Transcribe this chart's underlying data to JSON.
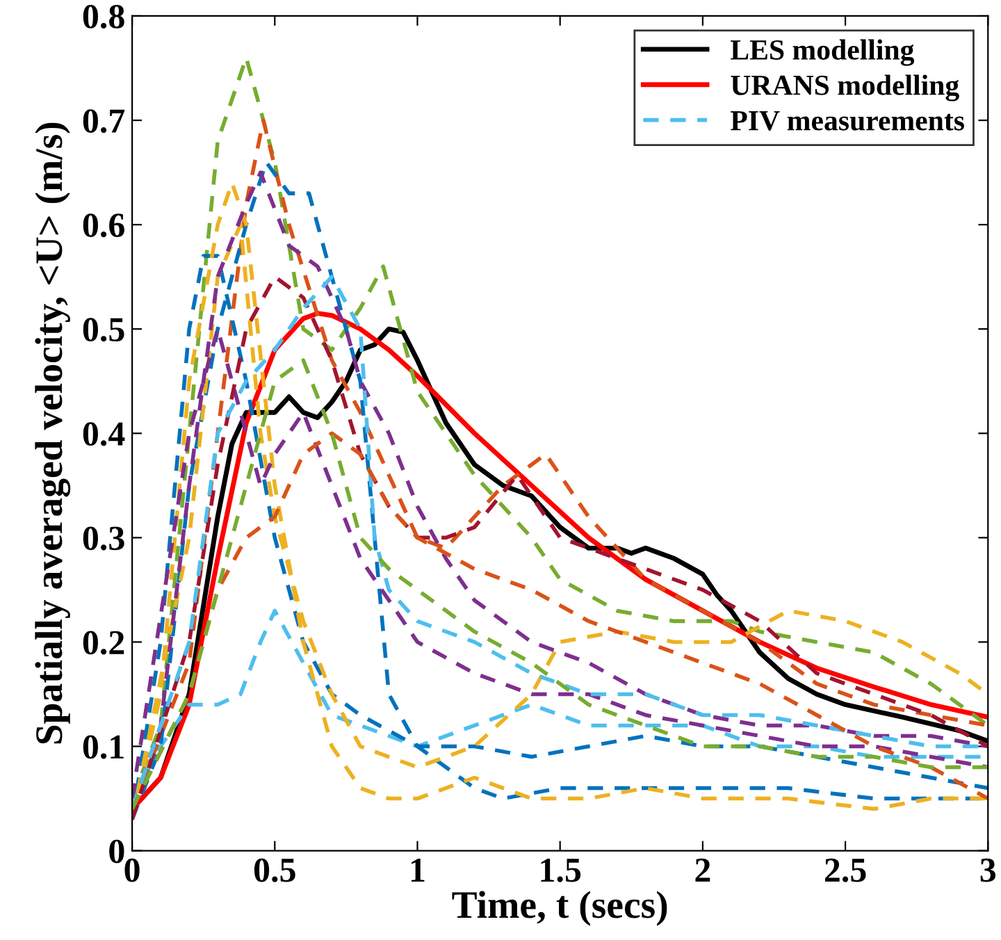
{
  "chart_data": {
    "type": "line",
    "xlabel": "Time, t (secs)",
    "ylabel": "Spatially averaged velocity, <U> (m/s)",
    "xlim": [
      0,
      3
    ],
    "ylim": [
      0,
      0.8
    ],
    "xticks": [
      0,
      0.5,
      1,
      1.5,
      2,
      2.5,
      3
    ],
    "yticks": [
      0,
      0.1,
      0.2,
      0.3,
      0.4,
      0.5,
      0.6,
      0.7,
      0.8
    ],
    "grid": false,
    "legend": "top right",
    "marker": "none",
    "series": [
      {
        "name": "LES modelling",
        "color": "#000000",
        "line_style": "solid",
        "x": [
          0,
          0.1,
          0.2,
          0.3,
          0.35,
          0.4,
          0.45,
          0.5,
          0.55,
          0.6,
          0.65,
          0.7,
          0.75,
          0.8,
          0.85,
          0.9,
          0.95,
          1.0,
          1.1,
          1.2,
          1.3,
          1.4,
          1.5,
          1.6,
          1.7,
          1.75,
          1.8,
          1.9,
          2.0,
          2.05,
          2.1,
          2.2,
          2.3,
          2.4,
          2.5,
          2.7,
          2.9,
          3.0
        ],
        "values": [
          0.04,
          0.07,
          0.15,
          0.32,
          0.39,
          0.42,
          0.42,
          0.42,
          0.435,
          0.42,
          0.415,
          0.43,
          0.45,
          0.48,
          0.485,
          0.5,
          0.497,
          0.47,
          0.41,
          0.37,
          0.35,
          0.34,
          0.31,
          0.29,
          0.29,
          0.285,
          0.29,
          0.28,
          0.265,
          0.245,
          0.23,
          0.19,
          0.165,
          0.15,
          0.14,
          0.128,
          0.115,
          0.105
        ]
      },
      {
        "name": "URANS modelling",
        "color": "#ff0000",
        "line_style": "solid",
        "x": [
          0,
          0.1,
          0.2,
          0.3,
          0.4,
          0.5,
          0.6,
          0.65,
          0.7,
          0.8,
          0.9,
          1.0,
          1.2,
          1.4,
          1.6,
          1.8,
          2.0,
          2.2,
          2.4,
          2.6,
          2.8,
          3.0
        ],
        "values": [
          0.04,
          0.07,
          0.14,
          0.28,
          0.41,
          0.48,
          0.51,
          0.515,
          0.513,
          0.5,
          0.48,
          0.455,
          0.4,
          0.35,
          0.3,
          0.26,
          0.23,
          0.2,
          0.175,
          0.157,
          0.14,
          0.128
        ]
      },
      {
        "name": "PIV measurements",
        "color": "#4dbeee",
        "line_style": "dashed",
        "x": [
          0,
          0.1,
          0.2,
          0.3,
          0.38,
          0.45,
          0.5,
          0.6,
          0.7,
          0.8,
          0.9,
          1.0,
          1.2,
          1.4,
          1.6,
          1.8,
          2.0,
          2.2,
          2.4,
          2.6,
          2.8,
          3.0
        ],
        "values": [
          0.05,
          0.1,
          0.14,
          0.14,
          0.15,
          0.2,
          0.23,
          0.18,
          0.13,
          0.12,
          0.11,
          0.1,
          0.12,
          0.14,
          0.12,
          0.12,
          0.12,
          0.1,
          0.1,
          0.09,
          0.09,
          0.09
        ]
      },
      {
        "color": "#77ac30",
        "line_style": "dashed",
        "x": [
          0,
          0.1,
          0.2,
          0.3,
          0.4,
          0.5,
          0.6,
          0.7,
          0.8,
          0.88,
          1.0,
          1.2,
          1.4,
          1.5,
          1.7,
          1.9,
          2.1,
          2.2,
          2.4,
          2.6,
          2.8,
          3.0
        ],
        "values": [
          0.05,
          0.12,
          0.4,
          0.68,
          0.76,
          0.66,
          0.5,
          0.48,
          0.52,
          0.56,
          0.44,
          0.36,
          0.3,
          0.26,
          0.23,
          0.22,
          0.22,
          0.21,
          0.2,
          0.19,
          0.16,
          0.12
        ]
      },
      {
        "color": "#d95319",
        "line_style": "dashed",
        "x": [
          0,
          0.2,
          0.3,
          0.4,
          0.46,
          0.55,
          0.7,
          0.8,
          0.9,
          1.0,
          1.1,
          1.2,
          1.3,
          1.45,
          1.6,
          1.8,
          2.0,
          2.2,
          2.4,
          2.6,
          2.8,
          3.0
        ],
        "values": [
          0.04,
          0.18,
          0.4,
          0.62,
          0.7,
          0.6,
          0.47,
          0.42,
          0.36,
          0.3,
          0.29,
          0.32,
          0.35,
          0.38,
          0.32,
          0.26,
          0.23,
          0.2,
          0.16,
          0.14,
          0.13,
          0.12
        ]
      },
      {
        "color": "#0072bd",
        "line_style": "dashed",
        "x": [
          0,
          0.1,
          0.2,
          0.3,
          0.4,
          0.47,
          0.55,
          0.62,
          0.7,
          0.8,
          0.85,
          0.9,
          1.0,
          1.2,
          1.4,
          1.6,
          1.8,
          2.0,
          2.2,
          2.4,
          2.6,
          2.8,
          3.0
        ],
        "values": [
          0.03,
          0.1,
          0.35,
          0.5,
          0.6,
          0.66,
          0.63,
          0.63,
          0.55,
          0.45,
          0.3,
          0.15,
          0.1,
          0.1,
          0.09,
          0.1,
          0.11,
          0.1,
          0.1,
          0.09,
          0.08,
          0.07,
          0.06
        ]
      },
      {
        "color": "#0072bd",
        "line_style": "dashed",
        "x": [
          0,
          0.1,
          0.2,
          0.25,
          0.3,
          0.4,
          0.5,
          0.6,
          0.7,
          0.8,
          1.0,
          1.2,
          1.3,
          1.5,
          1.8,
          2.0,
          2.3,
          2.6,
          2.8,
          3.0
        ],
        "values": [
          0.03,
          0.2,
          0.5,
          0.57,
          0.57,
          0.45,
          0.3,
          0.2,
          0.15,
          0.13,
          0.1,
          0.06,
          0.05,
          0.06,
          0.06,
          0.06,
          0.06,
          0.05,
          0.05,
          0.05
        ]
      },
      {
        "color": "#edb120",
        "line_style": "dashed",
        "x": [
          0,
          0.1,
          0.2,
          0.3,
          0.35,
          0.4,
          0.5,
          0.6,
          0.7,
          0.8,
          0.9,
          1.0,
          1.2,
          1.4,
          1.6,
          1.8,
          2.0,
          2.3,
          2.6,
          2.8,
          3.0
        ],
        "values": [
          0.03,
          0.15,
          0.45,
          0.6,
          0.64,
          0.6,
          0.35,
          0.2,
          0.1,
          0.06,
          0.05,
          0.05,
          0.07,
          0.05,
          0.05,
          0.06,
          0.05,
          0.05,
          0.04,
          0.05,
          0.05
        ]
      },
      {
        "color": "#edb120",
        "line_style": "dashed",
        "x": [
          0,
          0.2,
          0.3,
          0.38,
          0.45,
          0.5,
          0.6,
          0.7,
          0.8,
          1.0,
          1.2,
          1.4,
          1.5,
          1.7,
          1.9,
          2.1,
          2.3,
          2.5,
          2.7,
          2.9,
          3.0
        ],
        "values": [
          0.03,
          0.3,
          0.55,
          0.6,
          0.4,
          0.32,
          0.22,
          0.15,
          0.1,
          0.08,
          0.1,
          0.15,
          0.2,
          0.21,
          0.2,
          0.2,
          0.23,
          0.22,
          0.2,
          0.17,
          0.15
        ]
      },
      {
        "color": "#7e2f8e",
        "line_style": "dashed",
        "x": [
          0,
          0.1,
          0.2,
          0.3,
          0.4,
          0.45,
          0.55,
          0.65,
          0.75,
          0.8,
          0.9,
          1.0,
          1.1,
          1.2,
          1.4,
          1.6,
          1.8,
          2.0,
          2.2,
          2.4,
          2.6,
          2.8,
          3.0
        ],
        "values": [
          0.04,
          0.12,
          0.35,
          0.55,
          0.62,
          0.65,
          0.58,
          0.56,
          0.5,
          0.45,
          0.4,
          0.33,
          0.28,
          0.24,
          0.2,
          0.18,
          0.15,
          0.13,
          0.12,
          0.12,
          0.11,
          0.11,
          0.1
        ]
      },
      {
        "color": "#7e2f8e",
        "line_style": "dashed",
        "x": [
          0,
          0.2,
          0.3,
          0.4,
          0.45,
          0.5,
          0.6,
          0.7,
          0.8,
          0.9,
          1.0,
          1.2,
          1.4,
          1.6,
          1.8,
          2.0,
          2.2,
          2.4,
          2.6,
          2.8,
          3.0
        ],
        "values": [
          0.05,
          0.4,
          0.5,
          0.4,
          0.35,
          0.38,
          0.42,
          0.35,
          0.28,
          0.24,
          0.2,
          0.17,
          0.15,
          0.15,
          0.13,
          0.12,
          0.11,
          0.1,
          0.1,
          0.09,
          0.08
        ]
      },
      {
        "color": "#a2142f",
        "line_style": "dashed",
        "x": [
          0,
          0.2,
          0.3,
          0.4,
          0.5,
          0.6,
          0.7,
          0.8,
          0.9,
          1.0,
          1.1,
          1.2,
          1.35,
          1.5,
          1.6,
          1.8,
          2.0,
          2.2,
          2.4,
          2.6,
          2.8,
          3.0
        ],
        "values": [
          0.03,
          0.2,
          0.37,
          0.5,
          0.55,
          0.53,
          0.47,
          0.38,
          0.33,
          0.3,
          0.3,
          0.31,
          0.36,
          0.3,
          0.29,
          0.27,
          0.25,
          0.22,
          0.17,
          0.15,
          0.13,
          0.1
        ]
      },
      {
        "color": "#4dbeee",
        "line_style": "dashed",
        "x": [
          0,
          0.2,
          0.3,
          0.4,
          0.5,
          0.6,
          0.7,
          0.8,
          0.85,
          0.9,
          1.0,
          1.2,
          1.4,
          1.6,
          1.8,
          2.0,
          2.2,
          2.4,
          2.6,
          2.8,
          3.0
        ],
        "values": [
          0.04,
          0.2,
          0.4,
          0.45,
          0.48,
          0.52,
          0.55,
          0.5,
          0.3,
          0.25,
          0.22,
          0.2,
          0.17,
          0.15,
          0.15,
          0.13,
          0.13,
          0.12,
          0.11,
          0.1,
          0.1
        ]
      },
      {
        "color": "#d95319",
        "line_style": "dashed",
        "x": [
          0,
          0.2,
          0.3,
          0.4,
          0.5,
          0.6,
          0.7,
          0.8,
          0.9,
          1.0,
          1.2,
          1.4,
          1.6,
          1.8,
          2.0,
          2.2,
          2.4,
          2.6,
          2.8,
          3.0
        ],
        "values": [
          0.04,
          0.15,
          0.25,
          0.3,
          0.32,
          0.38,
          0.4,
          0.38,
          0.33,
          0.3,
          0.27,
          0.25,
          0.22,
          0.2,
          0.18,
          0.16,
          0.13,
          0.1,
          0.08,
          0.05
        ]
      },
      {
        "color": "#77ac30",
        "line_style": "dashed",
        "x": [
          0,
          0.2,
          0.3,
          0.5,
          0.6,
          0.7,
          0.8,
          0.9,
          1.0,
          1.2,
          1.4,
          1.6,
          1.8,
          2.0,
          2.2,
          2.4,
          2.6,
          2.8,
          3.0
        ],
        "values": [
          0.04,
          0.15,
          0.25,
          0.45,
          0.47,
          0.4,
          0.3,
          0.27,
          0.25,
          0.21,
          0.18,
          0.14,
          0.12,
          0.1,
          0.1,
          0.09,
          0.09,
          0.08,
          0.08
        ]
      }
    ]
  }
}
